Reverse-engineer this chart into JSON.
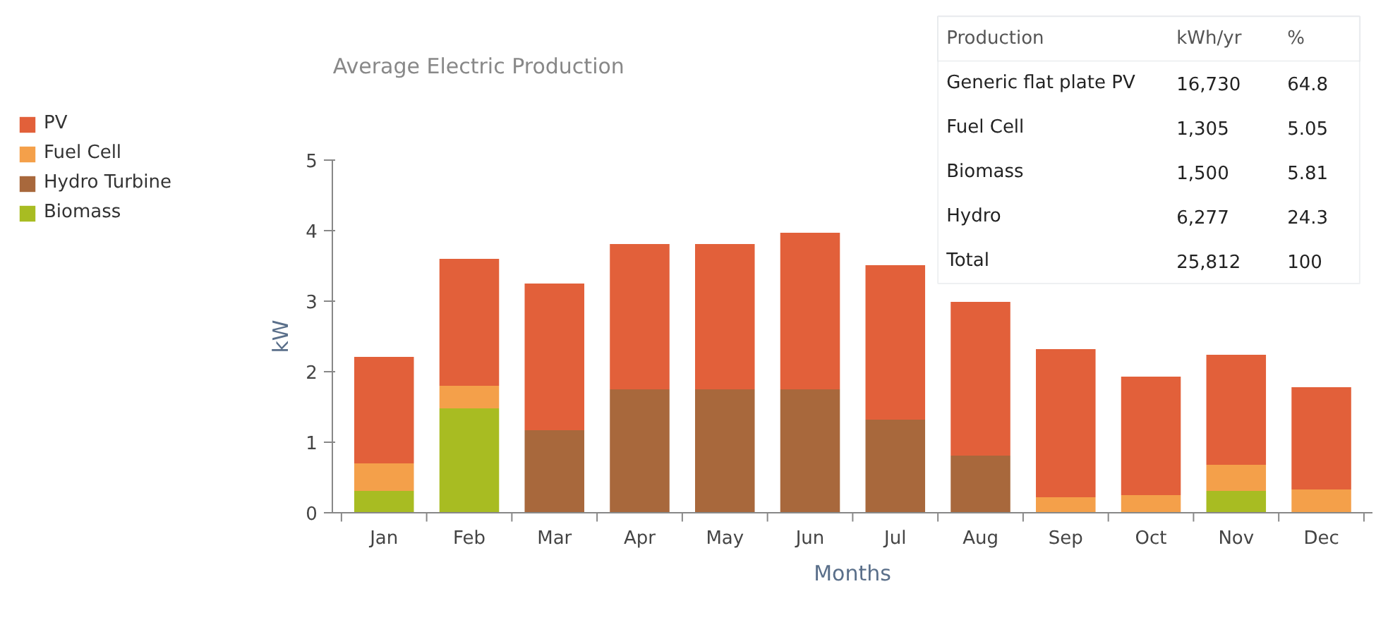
{
  "chart_data": {
    "type": "bar",
    "title": "Average Electric Production",
    "xlabel": "Months",
    "ylabel": "kW",
    "categories": [
      "Jan",
      "Feb",
      "Mar",
      "Apr",
      "May",
      "Jun",
      "Jul",
      "Aug",
      "Sep",
      "Oct",
      "Nov",
      "Dec"
    ],
    "stacked": true,
    "ylim": [
      0,
      5
    ],
    "yticks": [
      0,
      1,
      2,
      3,
      4,
      5
    ],
    "grid": false,
    "legend": "left",
    "series": [
      {
        "name": "Biomass",
        "color": "#a8bc22",
        "values": [
          0.31,
          1.48,
          0,
          0,
          0,
          0,
          0,
          0,
          0,
          0,
          0.31,
          0
        ]
      },
      {
        "name": "Hydro Turbine",
        "color": "#a8683c",
        "values": [
          0,
          0,
          1.17,
          1.75,
          1.75,
          1.75,
          1.32,
          0.81,
          0,
          0,
          0,
          0
        ]
      },
      {
        "name": "Fuel Cell",
        "color": "#f4a04a",
        "values": [
          0.39,
          0.32,
          0,
          0,
          0,
          0,
          0,
          0,
          0.22,
          0.25,
          0.37,
          0.33
        ]
      },
      {
        "name": "PV",
        "color": "#e2603a",
        "values": [
          1.51,
          1.8,
          2.08,
          2.06,
          2.06,
          2.22,
          2.19,
          2.18,
          2.1,
          1.68,
          1.56,
          1.45
        ]
      }
    ],
    "annotations": [
      "Production",
      "kWh/yr",
      "%",
      "Generic flat plate PV",
      "16,730",
      "64.8",
      "Fuel Cell",
      "1,305",
      "5.05",
      "Biomass",
      "1,500",
      "5.81",
      "Hydro",
      "6,277",
      "24.3",
      "Total",
      "25,812",
      "100"
    ]
  }
}
